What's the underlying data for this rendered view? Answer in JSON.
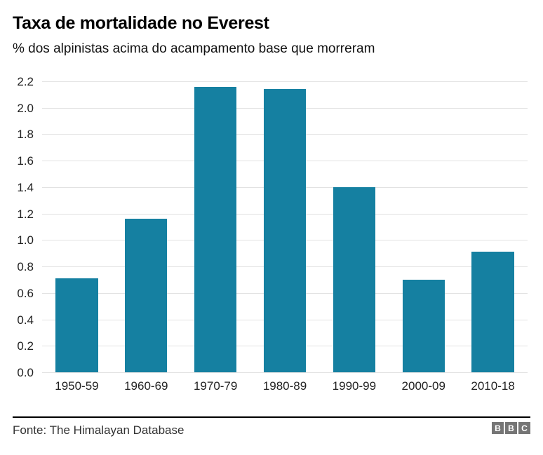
{
  "chart_data": {
    "type": "bar",
    "title": "Taxa de mortalidade no Everest",
    "subtitle": "% dos alpinistas acima do acampamento base que morreram",
    "categories": [
      "1950-59",
      "1960-69",
      "1970-79",
      "1980-89",
      "1990-99",
      "2000-09",
      "2010-18"
    ],
    "values": [
      0.71,
      1.16,
      2.16,
      2.14,
      1.4,
      0.7,
      0.91
    ],
    "xlabel": "",
    "ylabel": "",
    "ylim": [
      0,
      2.2
    ],
    "ytick_step": 0.2,
    "yticks": [
      "2.2",
      "2.0",
      "1.8",
      "1.6",
      "1.4",
      "1.2",
      "1.0",
      "0.8",
      "0.6",
      "0.4",
      "0.2",
      "0.0"
    ],
    "grid": true,
    "legend_position": "none",
    "bar_color": "#1580a1",
    "gridline_color": "#e2e2e2",
    "tick_label_color": "#222222"
  },
  "footer": {
    "source": "Fonte: The Himalayan Database",
    "bbc_logo_letters": [
      "B",
      "B",
      "C"
    ]
  }
}
